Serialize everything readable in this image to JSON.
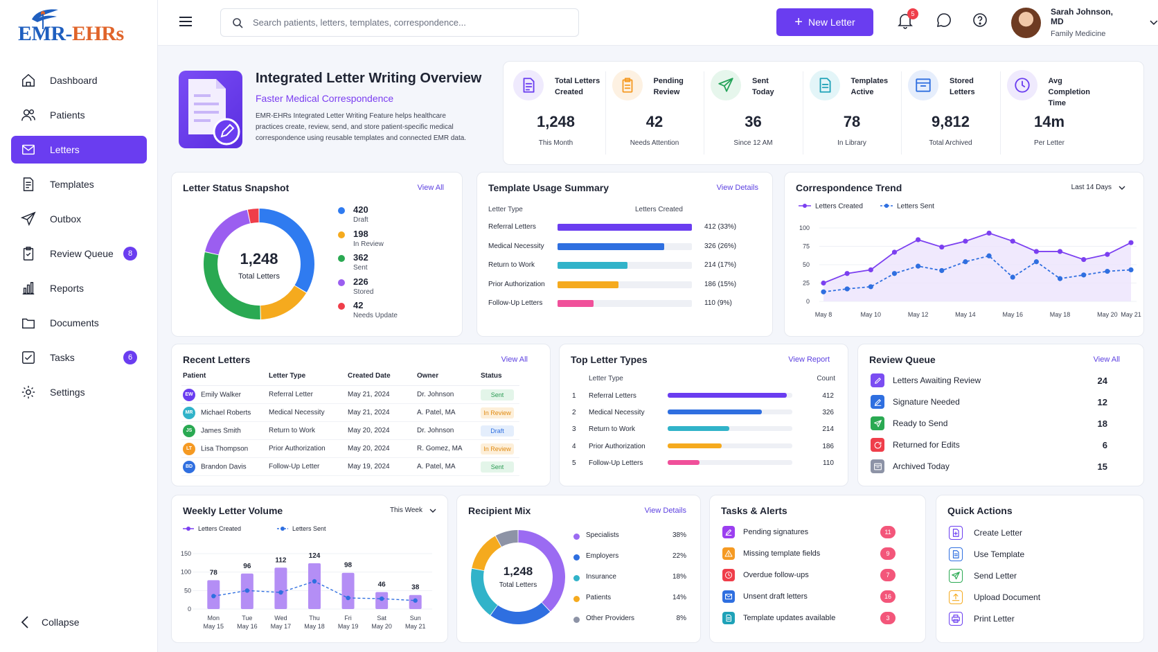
{
  "brand": {
    "logo_main": "EMR-",
    "logo_accent": "EHRs"
  },
  "sidebar": {
    "items": [
      {
        "label": "Dashboard",
        "icon": "home-icon"
      },
      {
        "label": "Patients",
        "icon": "users-icon"
      },
      {
        "label": "Letters",
        "icon": "mail-icon",
        "active": true
      },
      {
        "label": "Templates",
        "icon": "document-icon"
      },
      {
        "label": "Outbox",
        "icon": "send-icon"
      },
      {
        "label": "Review Queue",
        "icon": "clipboard-icon",
        "badge": "8"
      },
      {
        "label": "Reports",
        "icon": "bar-chart-icon"
      },
      {
        "label": "Documents",
        "icon": "folder-icon"
      },
      {
        "label": "Tasks",
        "icon": "checkbox-icon",
        "badge": "6"
      },
      {
        "label": "Settings",
        "icon": "gear-icon"
      }
    ],
    "collapse_label": "Collapse"
  },
  "topbar": {
    "search_placeholder": "Search patients, letters, templates, correspondence...",
    "new_letter_label": "New Letter",
    "notification_count": "5",
    "user_name": "Sarah Johnson, MD",
    "user_role": "Family Medicine"
  },
  "overview": {
    "title": "Integrated Letter Writing Overview",
    "subtitle": "Faster Medical Correspondence",
    "description": "EMR-EHRs Integrated Letter Writing Feature helps healthcare practices create, review, send, and store patient-specific medical correspondence using reusable templates and connected EMR data."
  },
  "stats": [
    {
      "label1": "Total Letters",
      "label2": "Created",
      "value": "1,248",
      "sub": "This Month",
      "icon": "letter-icon",
      "color": "#6a3df0",
      "bg": "#efeafd"
    },
    {
      "label1": "Pending",
      "label2": "Review",
      "value": "42",
      "sub": "Needs Attention",
      "icon": "clipboard-icon",
      "color": "#f59a23",
      "bg": "#fdf1e2"
    },
    {
      "label1": "Sent",
      "label2": "Today",
      "value": "36",
      "sub": "Since 12 AM",
      "icon": "send-icon",
      "color": "#25a45a",
      "bg": "#e6f6ec"
    },
    {
      "label1": "Templates",
      "label2": "Active",
      "value": "78",
      "sub": "In Library",
      "icon": "template-icon",
      "color": "#1fa2b8",
      "bg": "#e3f5f8"
    },
    {
      "label1": "Stored",
      "label2": "Letters",
      "value": "9,812",
      "sub": "Total Archived",
      "icon": "archive-icon",
      "color": "#2f6fe0",
      "bg": "#e6eefc"
    },
    {
      "label1": "Avg Completion",
      "label2": "Time",
      "value": "14m",
      "sub": "Per Letter",
      "icon": "clock-icon",
      "color": "#6a3df0",
      "bg": "#efeafd"
    }
  ],
  "status_snapshot": {
    "title": "Letter Status Snapshot",
    "link": "View All",
    "center_value": "1,248",
    "center_label": "Total Letters",
    "items": [
      {
        "value": 420,
        "label": "Draft",
        "color": "#2f7bf0"
      },
      {
        "value": 198,
        "label": "In Review",
        "color": "#f5aa1e"
      },
      {
        "value": 362,
        "label": "Sent",
        "color": "#2aa952"
      },
      {
        "value": 226,
        "label": "Stored",
        "color": "#9b5ef0"
      },
      {
        "value": 42,
        "label": "Needs Update",
        "color": "#ef3e4a"
      }
    ]
  },
  "template_usage": {
    "title": "Template Usage Summary",
    "link": "View Details",
    "col1": "Letter Type",
    "col2": "Letters Created",
    "rows": [
      {
        "label": "Referral Letters",
        "value": 412,
        "text": "412 (33%)",
        "color": "#6a3df0"
      },
      {
        "label": "Medical Necessity",
        "value": 326,
        "text": "326 (26%)",
        "color": "#2f6fe0"
      },
      {
        "label": "Return to Work",
        "value": 214,
        "text": "214 (17%)",
        "color": "#31b3c9"
      },
      {
        "label": "Prior Authorization",
        "value": 186,
        "text": "186 (15%)",
        "color": "#f5aa1e"
      },
      {
        "label": "Follow-Up Letters",
        "value": 110,
        "text": "110 (9%)",
        "color": "#f0509a"
      }
    ]
  },
  "trend": {
    "title": "Correspondence Trend",
    "range": "Last 14 Days",
    "legend_created": "Letters Created",
    "legend_sent": "Letters Sent"
  },
  "chart_data": [
    {
      "type": "line",
      "title": "Correspondence Trend",
      "x": [
        "May 8",
        "May 9",
        "May 10",
        "May 11",
        "May 12",
        "May 13",
        "May 14",
        "May 15",
        "May 16",
        "May 17",
        "May 18",
        "May 19",
        "May 20",
        "May 21"
      ],
      "x_tick_labels": [
        "May 8",
        "May 10",
        "May 12",
        "May 14",
        "May 16",
        "May 18",
        "May 20",
        "May 21"
      ],
      "ylim": [
        0,
        100
      ],
      "yticks": [
        0,
        25,
        50,
        75,
        100
      ],
      "series": [
        {
          "name": "Letters Created",
          "values": [
            25,
            38,
            43,
            67,
            84,
            74,
            82,
            93,
            82,
            68,
            68,
            57,
            64,
            80
          ],
          "color": "#7b3ff0"
        },
        {
          "name": "Letters Sent",
          "values": [
            13,
            17,
            20,
            38,
            48,
            42,
            54,
            62,
            33,
            54,
            31,
            36,
            41,
            43
          ],
          "color": "#2f6fe0"
        }
      ]
    },
    {
      "type": "bar",
      "title": "Weekly Letter Volume",
      "categories": [
        "Mon",
        "Tue",
        "Wed",
        "Thu",
        "Fri",
        "Sat",
        "Sun"
      ],
      "dates": [
        "May 15",
        "May 16",
        "May 17",
        "May 18",
        "May 19",
        "May 20",
        "May 21"
      ],
      "ylim": [
        0,
        150
      ],
      "yticks": [
        0,
        50,
        100,
        150
      ],
      "series": [
        {
          "name": "Letters Created",
          "values": [
            78,
            96,
            112,
            124,
            98,
            46,
            38
          ],
          "color": "#b48ef5"
        },
        {
          "name": "Letters Sent",
          "values": [
            35,
            50,
            45,
            75,
            30,
            28,
            23
          ],
          "color": "#2f6fe0"
        }
      ]
    },
    {
      "type": "pie",
      "title": "Recipient Mix",
      "center_value": "1,248",
      "center_label": "Total Letters",
      "slices": [
        {
          "label": "Specialists",
          "value": 38,
          "text": "38%",
          "color": "#9b6bf2"
        },
        {
          "label": "Employers",
          "value": 22,
          "text": "22%",
          "color": "#2f6fe0"
        },
        {
          "label": "Insurance",
          "value": 18,
          "text": "18%",
          "color": "#31b3c9"
        },
        {
          "label": "Patients",
          "value": 14,
          "text": "14%",
          "color": "#f5aa1e"
        },
        {
          "label": "Other Providers",
          "value": 8,
          "text": "8%",
          "color": "#8d93a6"
        }
      ]
    }
  ],
  "weekly": {
    "title": "Weekly Letter Volume",
    "range": "This Week",
    "legend_created": "Letters Created",
    "legend_sent": "Letters Sent"
  },
  "recipient": {
    "title": "Recipient Mix",
    "link": "View Details"
  },
  "recent": {
    "title": "Recent Letters",
    "link": "View All",
    "headers": [
      "Patient",
      "Letter Type",
      "Created Date",
      "Owner",
      "Status"
    ],
    "rows": [
      {
        "initials": "EW",
        "patient": "Emily Walker",
        "type": "Referral Letter",
        "date": "May 21, 2024",
        "owner": "Dr. Johnson",
        "status": "Sent",
        "avcolor": "#6a3df0",
        "sbg": "#e3f5e9",
        "sfg": "#2a9a52"
      },
      {
        "initials": "MR",
        "patient": "Michael Roberts",
        "type": "Medical Necessity",
        "date": "May 21, 2024",
        "owner": "A. Patel, MA",
        "status": "In Review",
        "avcolor": "#31b3c9",
        "sbg": "#fdefd9",
        "sfg": "#e08a12"
      },
      {
        "initials": "JS",
        "patient": "James Smith",
        "type": "Return to Work",
        "date": "May 20, 2024",
        "owner": "Dr. Johnson",
        "status": "Draft",
        "avcolor": "#2aa952",
        "sbg": "#e4eefc",
        "sfg": "#2f6fe0"
      },
      {
        "initials": "LT",
        "patient": "Lisa Thompson",
        "type": "Prior Authorization",
        "date": "May 20, 2024",
        "owner": "R. Gomez, MA",
        "status": "In Review",
        "avcolor": "#f59a23",
        "sbg": "#fdefd9",
        "sfg": "#e08a12"
      },
      {
        "initials": "BD",
        "patient": "Brandon Davis",
        "type": "Follow-Up Letter",
        "date": "May 19, 2024",
        "owner": "A. Patel, MA",
        "status": "Sent",
        "avcolor": "#2f6fe0",
        "sbg": "#e3f5e9",
        "sfg": "#2a9a52"
      }
    ]
  },
  "top_types": {
    "title": "Top Letter Types",
    "link": "View Report",
    "col1": "Letter Type",
    "col2": "Count",
    "rows": [
      {
        "rank": "1",
        "label": "Referral Letters",
        "value": 412,
        "text": "412",
        "color": "#6a3df0"
      },
      {
        "rank": "2",
        "label": "Medical Necessity",
        "value": 326,
        "text": "326",
        "color": "#2f6fe0"
      },
      {
        "rank": "3",
        "label": "Return to Work",
        "value": 214,
        "text": "214",
        "color": "#31b3c9"
      },
      {
        "rank": "4",
        "label": "Prior Authorization",
        "value": 186,
        "text": "186",
        "color": "#f5aa1e"
      },
      {
        "rank": "5",
        "label": "Follow-Up Letters",
        "value": 110,
        "text": "110",
        "color": "#f0509a"
      }
    ]
  },
  "review_queue": {
    "title": "Review Queue",
    "link": "View All",
    "rows": [
      {
        "label": "Letters Awaiting Review",
        "count": "24",
        "color": "#7b4df2",
        "icon": "edit-icon"
      },
      {
        "label": "Signature Needed",
        "count": "12",
        "color": "#2f6fe0",
        "icon": "pen-icon"
      },
      {
        "label": "Ready to Send",
        "count": "18",
        "color": "#2aa952",
        "icon": "send-icon"
      },
      {
        "label": "Returned for Edits",
        "count": "6",
        "color": "#ef3e4a",
        "icon": "refresh-icon"
      },
      {
        "label": "Archived Today",
        "count": "15",
        "color": "#8d93a6",
        "icon": "archive-icon"
      }
    ]
  },
  "tasks": {
    "title": "Tasks & Alerts",
    "rows": [
      {
        "label": "Pending signatures",
        "count": "11",
        "color": "#9b3ff0",
        "icon": "pen-icon"
      },
      {
        "label": "Missing template fields",
        "count": "9",
        "color": "#f59a23",
        "icon": "warning-icon"
      },
      {
        "label": "Overdue follow-ups",
        "count": "7",
        "color": "#ef3e4a",
        "icon": "clock-icon"
      },
      {
        "label": "Unsent draft letters",
        "count": "16",
        "color": "#2f6fe0",
        "icon": "mail-icon"
      },
      {
        "label": "Template updates available",
        "count": "3",
        "color": "#1fa2b8",
        "icon": "document-icon"
      }
    ]
  },
  "quick_actions": {
    "title": "Quick Actions",
    "rows": [
      {
        "label": "Create Letter",
        "color": "#6a3df0",
        "icon": "file-plus-icon"
      },
      {
        "label": "Use Template",
        "color": "#2f6fe0",
        "icon": "template-icon"
      },
      {
        "label": "Send Letter",
        "color": "#2aa952",
        "icon": "send-icon"
      },
      {
        "label": "Upload Document",
        "color": "#f5aa1e",
        "icon": "upload-icon"
      },
      {
        "label": "Print Letter",
        "color": "#6a3df0",
        "icon": "printer-icon"
      }
    ]
  }
}
